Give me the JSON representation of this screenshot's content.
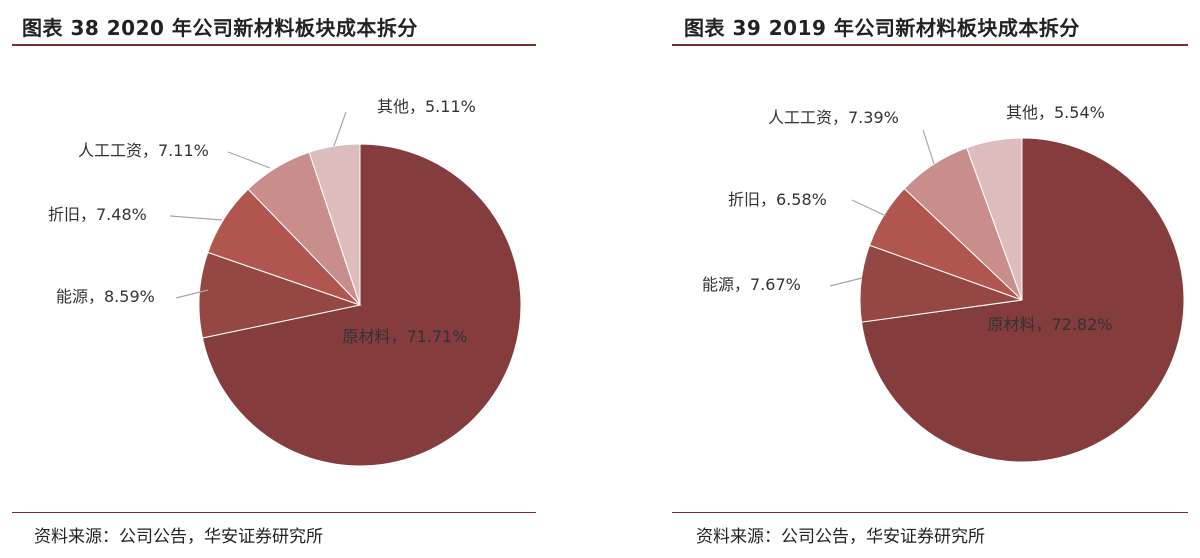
{
  "left": {
    "title": "图表 38 2020 年公司新材料板块成本拆分",
    "source": "资料来源：公司公告，华安证券研究所"
  },
  "right": {
    "title": "图表 39 2019 年公司新材料板块成本拆分",
    "source": "资料来源：公司公告，华安证券研究所"
  },
  "colors": [
    "#843c3c",
    "#954843",
    "#b0564e",
    "#c98e8c",
    "#dcbcbc"
  ],
  "chart_data": [
    {
      "type": "pie",
      "title": "图表 38 2020 年公司新材料板块成本拆分",
      "slices": [
        {
          "label": "原材料",
          "value": 71.71,
          "text": "原材料，71.71%"
        },
        {
          "label": "能源",
          "value": 8.59,
          "text": "能源，8.59%"
        },
        {
          "label": "折旧",
          "value": 7.48,
          "text": "折旧，7.48%"
        },
        {
          "label": "人工工资",
          "value": 7.11,
          "text": "人工工资，7.11%"
        },
        {
          "label": "其他",
          "value": 5.11,
          "text": "其他，5.11%"
        }
      ]
    },
    {
      "type": "pie",
      "title": "图表 39 2019 年公司新材料板块成本拆分",
      "slices": [
        {
          "label": "原材料",
          "value": 72.82,
          "text": "原材料，72.82%"
        },
        {
          "label": "能源",
          "value": 7.67,
          "text": "能源，7.67%"
        },
        {
          "label": "折旧",
          "value": 6.58,
          "text": "折旧，6.58%"
        },
        {
          "label": "人工工资",
          "value": 7.39,
          "text": "人工工资，7.39%"
        },
        {
          "label": "其他",
          "value": 5.54,
          "text": "其他，5.54%"
        }
      ]
    }
  ]
}
